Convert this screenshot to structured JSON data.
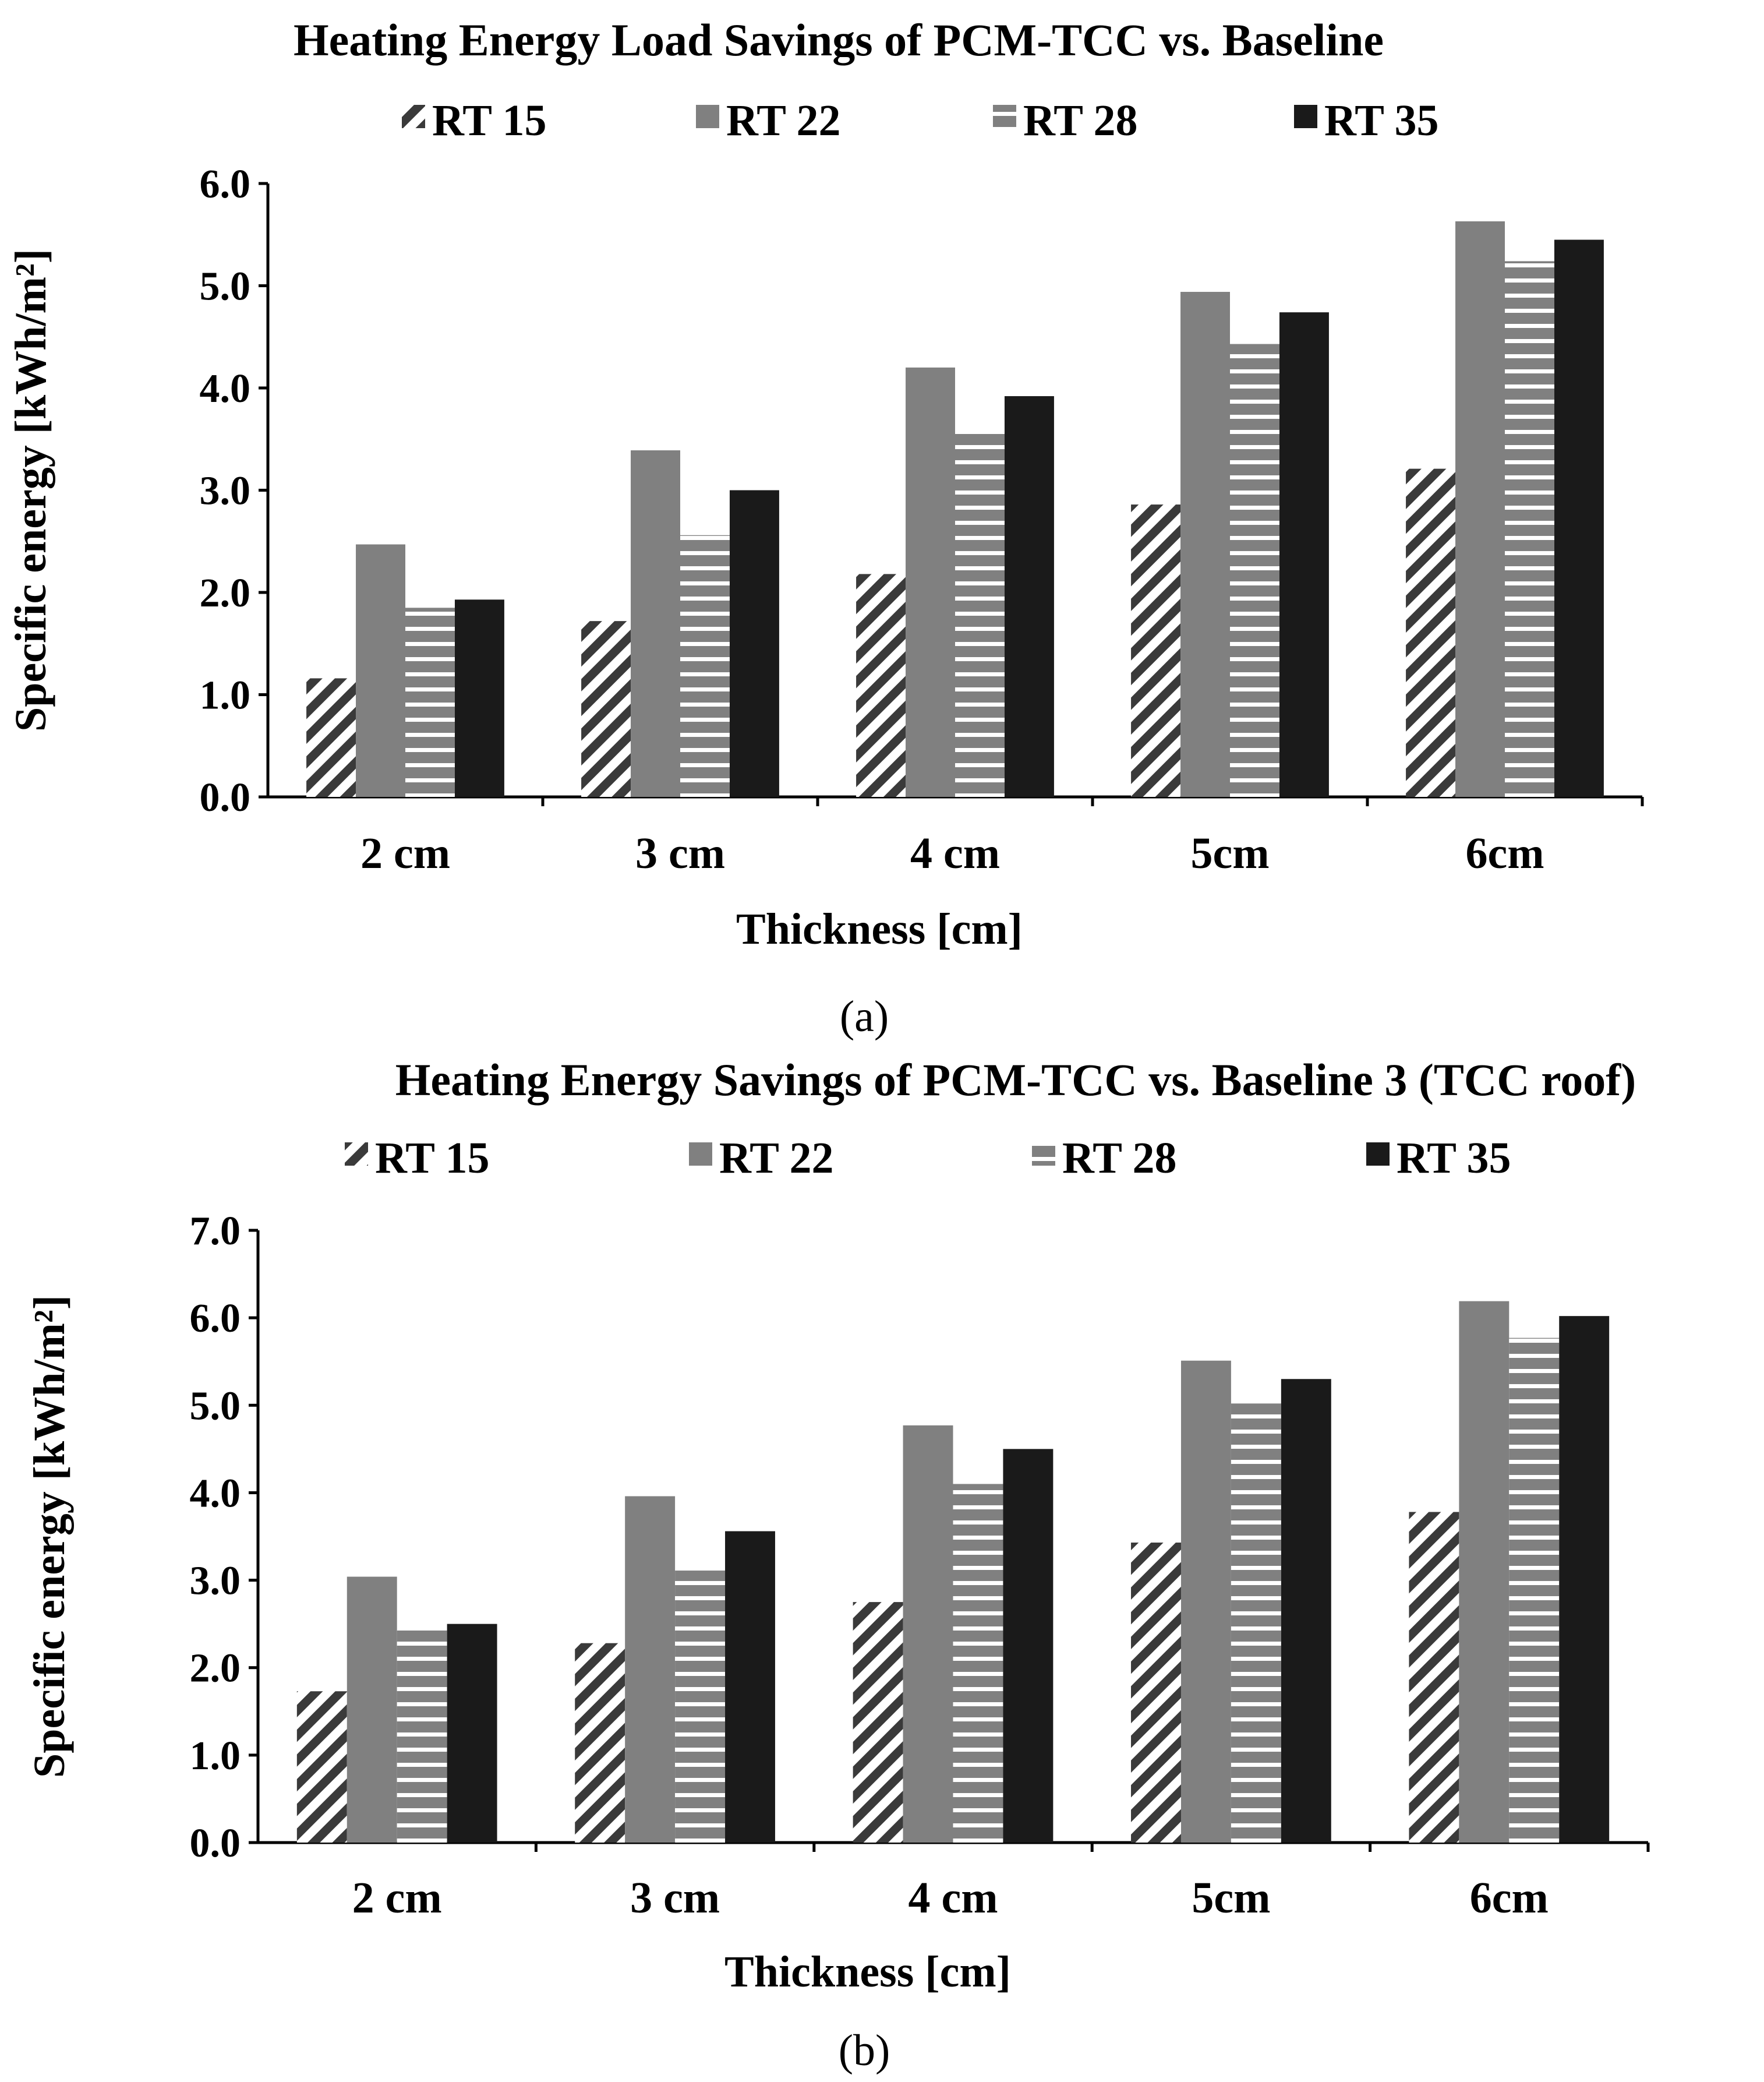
{
  "chart_data": [
    {
      "type": "bar",
      "panel": "a",
      "title": "Heating Energy Load Savings of PCM-TCC vs. Baseline",
      "caption": "(a)",
      "xlabel": "Thickness [cm]",
      "ylabel": "Specific energy [kWh/m²]",
      "ylim": [
        0,
        6
      ],
      "yticks": [
        "0.0",
        "1.0",
        "2.0",
        "3.0",
        "4.0",
        "5.0",
        "6.0"
      ],
      "categories": [
        "2 cm",
        "3 cm",
        "4 cm",
        "5cm",
        "6cm"
      ],
      "legend_position": "top",
      "series": [
        {
          "name": "RT 15",
          "values": [
            1.16,
            1.72,
            2.18,
            2.86,
            3.21
          ],
          "fill": "hatch-diagonal",
          "color": "#3a3a3a"
        },
        {
          "name": "RT 22",
          "values": [
            2.47,
            3.39,
            4.2,
            4.94,
            5.63
          ],
          "fill": "solid",
          "color": "#808080"
        },
        {
          "name": "RT 28",
          "values": [
            1.85,
            2.56,
            3.56,
            4.43,
            5.24
          ],
          "fill": "hatch-horizontal",
          "color": "#808080"
        },
        {
          "name": "RT 35",
          "values": [
            1.93,
            3.0,
            3.92,
            4.74,
            5.45
          ],
          "fill": "solid",
          "color": "#1a1a1a"
        }
      ]
    },
    {
      "type": "bar",
      "panel": "b",
      "title": "Heating Energy Savings of PCM-TCC vs. Baseline 3 (TCC roof)",
      "caption": "(b)",
      "xlabel": "Thickness [cm]",
      "ylabel": "Specific energy [kWh/m²]",
      "ylim": [
        0,
        7
      ],
      "yticks": [
        "0.0",
        "1.0",
        "2.0",
        "3.0",
        "4.0",
        "5.0",
        "6.0",
        "7.0"
      ],
      "categories": [
        "2 cm",
        "3 cm",
        "4 cm",
        "5cm",
        "6cm"
      ],
      "legend_position": "top",
      "series": [
        {
          "name": "RT 15",
          "values": [
            1.73,
            2.28,
            2.75,
            3.43,
            3.78
          ],
          "fill": "hatch-diagonal",
          "color": "#3a3a3a"
        },
        {
          "name": "RT 22",
          "values": [
            3.04,
            3.96,
            4.77,
            5.51,
            6.19
          ],
          "fill": "solid",
          "color": "#808080"
        },
        {
          "name": "RT 28",
          "values": [
            2.43,
            3.11,
            4.1,
            5.02,
            5.77
          ],
          "fill": "hatch-horizontal",
          "color": "#808080"
        },
        {
          "name": "RT 35",
          "values": [
            2.5,
            3.56,
            4.5,
            5.3,
            6.02
          ],
          "fill": "solid",
          "color": "#1a1a1a"
        }
      ]
    }
  ]
}
